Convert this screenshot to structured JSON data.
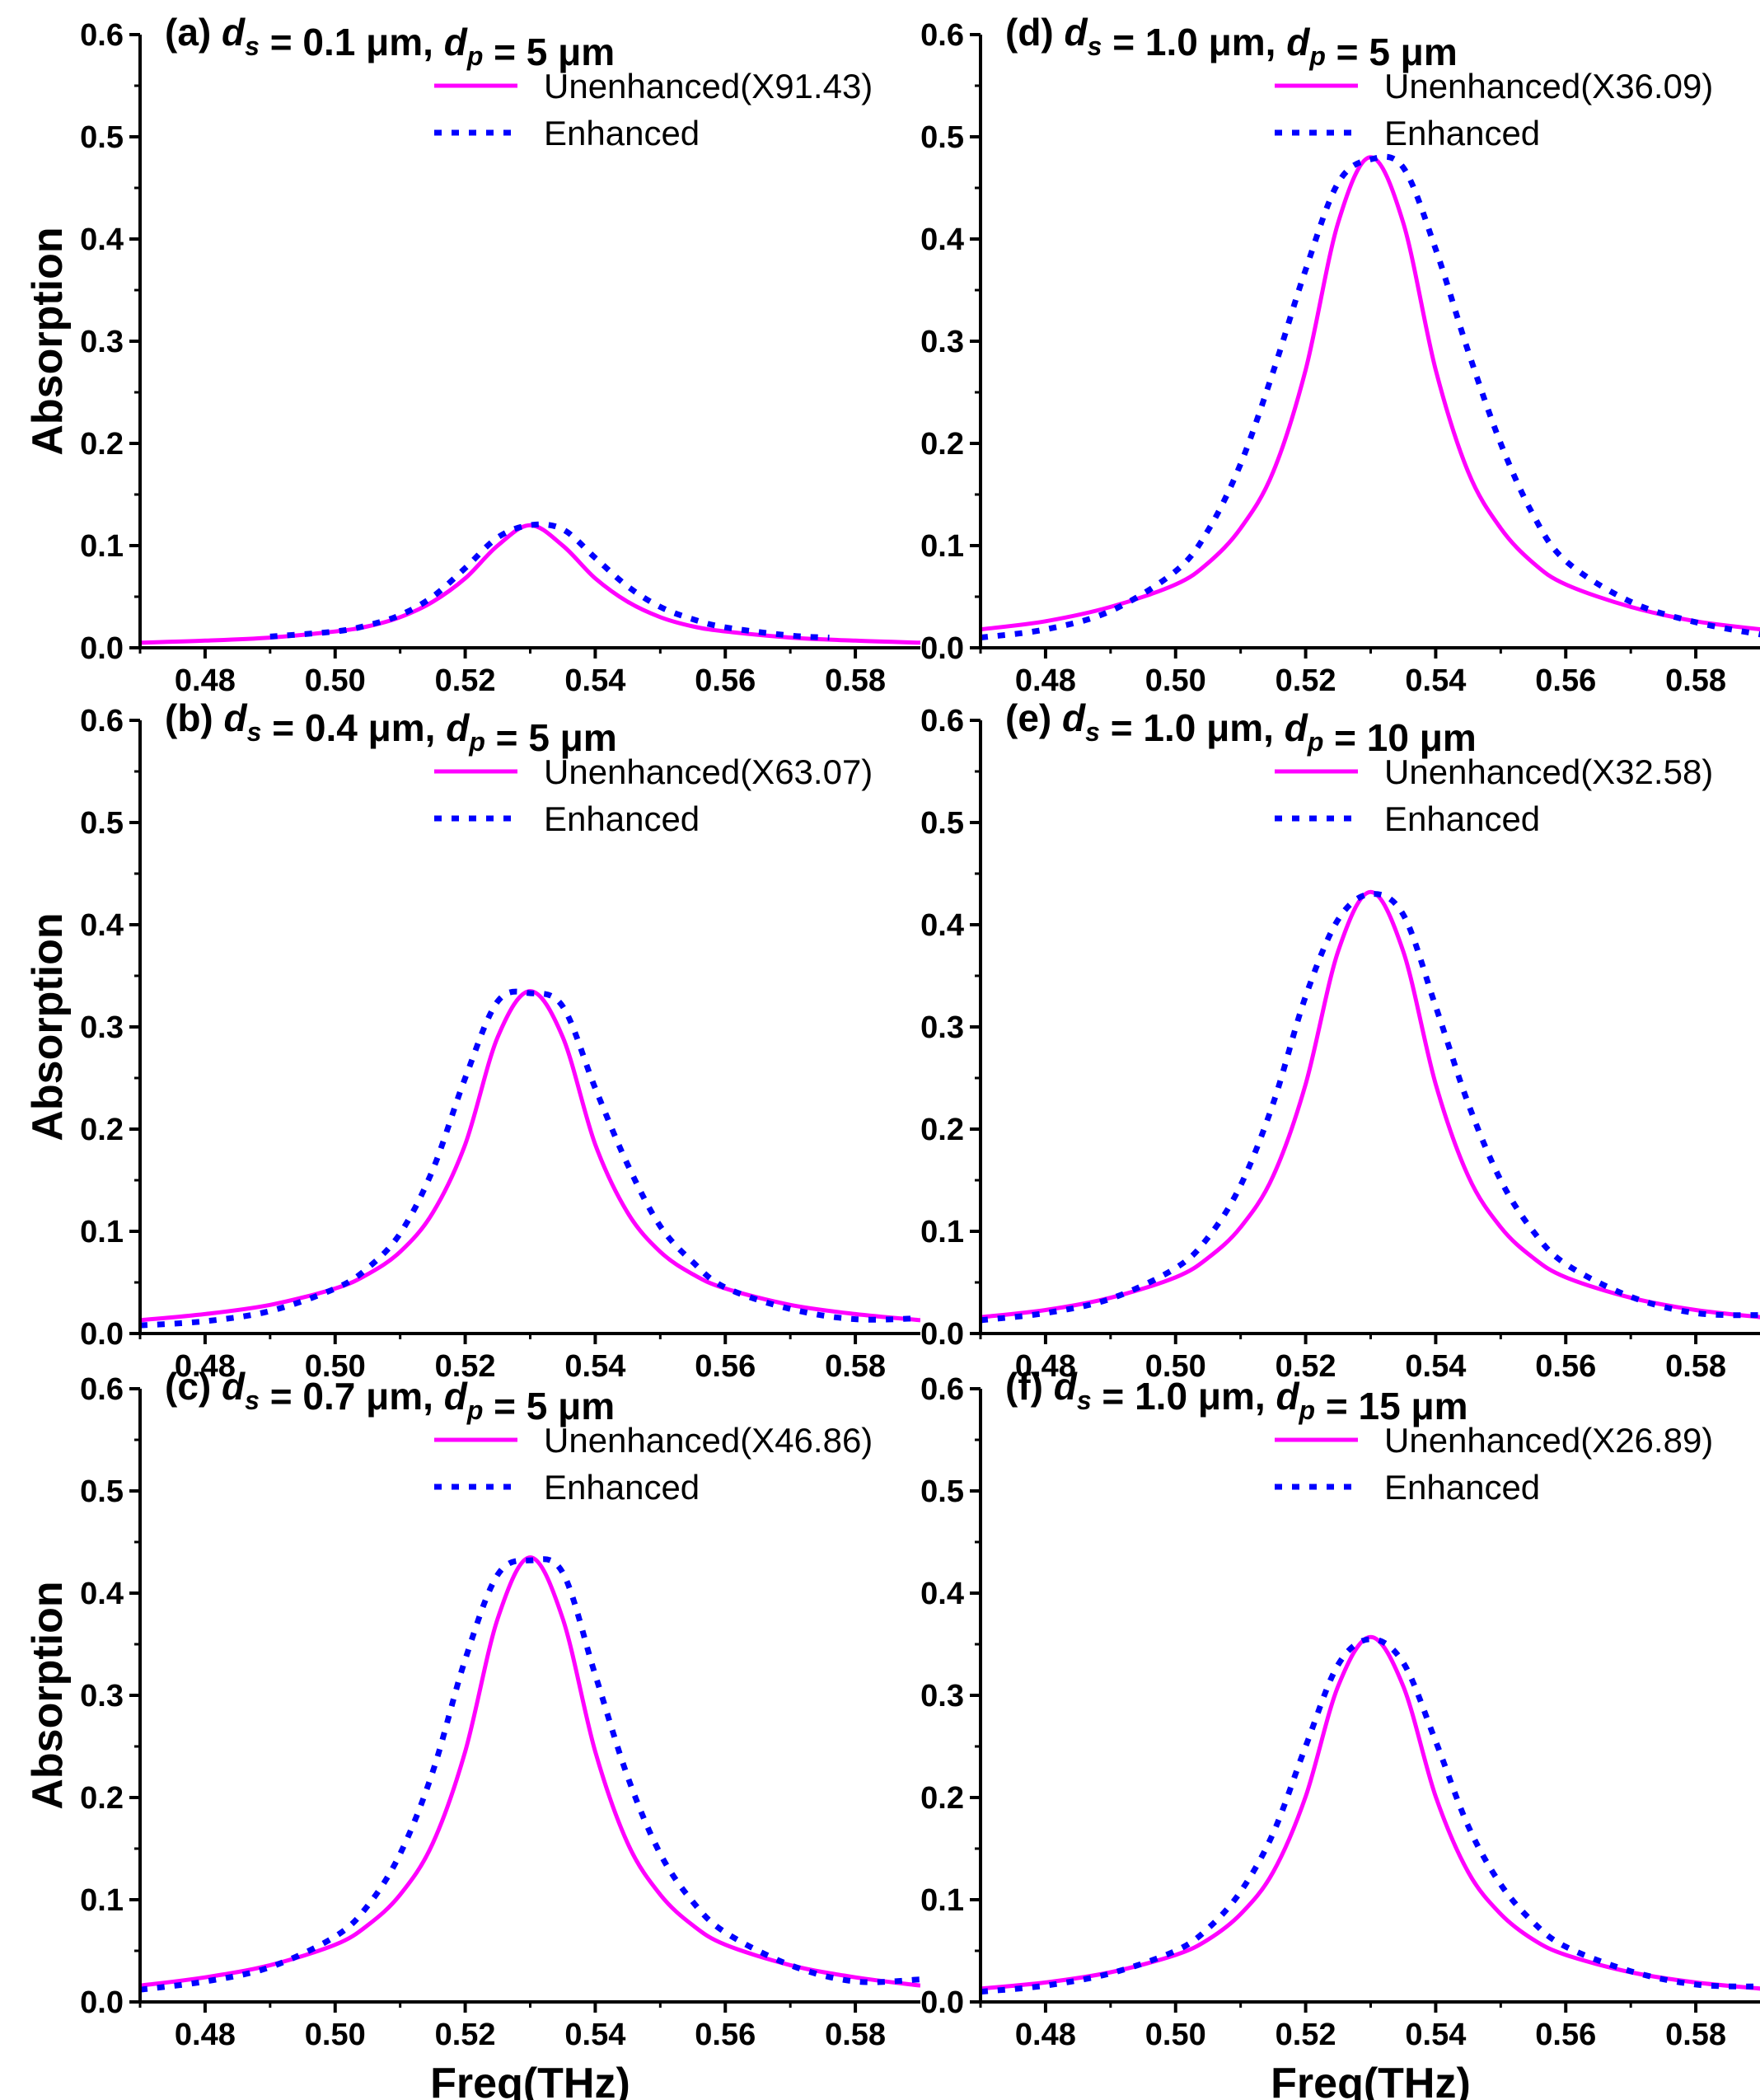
{
  "colors": {
    "unenhanced": "#ff00ff",
    "enhanced": "#0000ff",
    "axis": "#000000"
  },
  "chart_data": [
    {
      "type": "line",
      "panel_label": "(a)",
      "ds_value": "0.1 μm",
      "dp_value": "5 μm",
      "ds_symbol": "d",
      "ds_sub": "s",
      "dp_symbol": "d",
      "dp_sub": "p",
      "xlabel": "",
      "ylabel": "Absorption",
      "xlim": [
        0.47,
        0.59
      ],
      "ylim": [
        0,
        0.6
      ],
      "xticks": [
        "0.48",
        "0.50",
        "0.52",
        "0.54",
        "0.56",
        "0.58"
      ],
      "yticks": [
        "0.0",
        "0.1",
        "0.2",
        "0.3",
        "0.4",
        "0.5",
        "0.6"
      ],
      "legend_position": "top-right",
      "series": [
        {
          "name": "Unenhanced(X91.43)",
          "style": "solid",
          "x": [
            0.47,
            0.48,
            0.49,
            0.5,
            0.505,
            0.51,
            0.515,
            0.52,
            0.525,
            0.53,
            0.535,
            0.54,
            0.545,
            0.55,
            0.555,
            0.56,
            0.57,
            0.58,
            0.59
          ],
          "y": [
            0.005,
            0.007,
            0.01,
            0.016,
            0.021,
            0.03,
            0.045,
            0.068,
            0.1,
            0.12,
            0.1,
            0.068,
            0.045,
            0.03,
            0.021,
            0.016,
            0.01,
            0.007,
            0.005
          ]
        },
        {
          "name": "Enhanced",
          "style": "dotted",
          "x": [
            0.49,
            0.5,
            0.505,
            0.51,
            0.515,
            0.52,
            0.525,
            0.53,
            0.535,
            0.54,
            0.545,
            0.55,
            0.555,
            0.56,
            0.57,
            0.576
          ],
          "y": [
            0.011,
            0.016,
            0.022,
            0.032,
            0.05,
            0.078,
            0.108,
            0.12,
            0.116,
            0.088,
            0.06,
            0.04,
            0.028,
            0.02,
            0.012,
            0.01
          ]
        }
      ]
    },
    {
      "type": "line",
      "panel_label": "(b)",
      "ds_value": "0.4 μm",
      "dp_value": "5 μm",
      "ds_symbol": "d",
      "ds_sub": "s",
      "dp_symbol": "d",
      "dp_sub": "p",
      "xlabel": "",
      "ylabel": "Absorption",
      "xlim": [
        0.47,
        0.59
      ],
      "ylim": [
        0,
        0.6
      ],
      "xticks": [
        "0.48",
        "0.50",
        "0.52",
        "0.54",
        "0.56",
        "0.58"
      ],
      "yticks": [
        "0.0",
        "0.1",
        "0.2",
        "0.3",
        "0.4",
        "0.5",
        "0.6"
      ],
      "legend_position": "top-right",
      "series": [
        {
          "name": "Unenhanced(X63.07)",
          "style": "solid",
          "x": [
            0.47,
            0.48,
            0.49,
            0.5,
            0.505,
            0.51,
            0.515,
            0.52,
            0.525,
            0.53,
            0.535,
            0.54,
            0.545,
            0.55,
            0.555,
            0.56,
            0.57,
            0.58,
            0.59
          ],
          "y": [
            0.013,
            0.019,
            0.028,
            0.044,
            0.058,
            0.08,
            0.118,
            0.185,
            0.29,
            0.335,
            0.29,
            0.185,
            0.118,
            0.08,
            0.058,
            0.044,
            0.028,
            0.019,
            0.013
          ]
        },
        {
          "name": "Enhanced",
          "style": "dotted",
          "x": [
            0.47,
            0.48,
            0.49,
            0.5,
            0.505,
            0.51,
            0.515,
            0.52,
            0.525,
            0.53,
            0.535,
            0.54,
            0.545,
            0.55,
            0.555,
            0.56,
            0.57,
            0.58,
            0.59
          ],
          "y": [
            0.008,
            0.012,
            0.022,
            0.044,
            0.064,
            0.098,
            0.16,
            0.25,
            0.325,
            0.333,
            0.32,
            0.24,
            0.165,
            0.105,
            0.07,
            0.045,
            0.024,
            0.014,
            0.015
          ]
        }
      ]
    },
    {
      "type": "line",
      "panel_label": "(c)",
      "ds_value": "0.7 μm",
      "dp_value": "5 μm",
      "ds_symbol": "d",
      "ds_sub": "s",
      "dp_symbol": "d",
      "dp_sub": "p",
      "xlabel": "Freq(THz)",
      "ylabel": "Absorption",
      "xlim": [
        0.47,
        0.59
      ],
      "ylim": [
        0,
        0.6
      ],
      "xticks": [
        "0.48",
        "0.50",
        "0.52",
        "0.54",
        "0.56",
        "0.58"
      ],
      "yticks": [
        "0.0",
        "0.1",
        "0.2",
        "0.3",
        "0.4",
        "0.5",
        "0.6"
      ],
      "legend_position": "top-right",
      "series": [
        {
          "name": "Unenhanced(X46.86)",
          "style": "solid",
          "x": [
            0.47,
            0.48,
            0.49,
            0.5,
            0.505,
            0.51,
            0.515,
            0.52,
            0.525,
            0.53,
            0.535,
            0.54,
            0.545,
            0.55,
            0.555,
            0.56,
            0.57,
            0.58,
            0.59
          ],
          "y": [
            0.016,
            0.024,
            0.036,
            0.056,
            0.075,
            0.105,
            0.155,
            0.245,
            0.375,
            0.435,
            0.375,
            0.245,
            0.155,
            0.105,
            0.075,
            0.056,
            0.036,
            0.024,
            0.016
          ]
        },
        {
          "name": "Enhanced",
          "style": "dotted",
          "x": [
            0.47,
            0.48,
            0.49,
            0.5,
            0.505,
            0.51,
            0.515,
            0.52,
            0.525,
            0.53,
            0.535,
            0.54,
            0.545,
            0.55,
            0.555,
            0.56,
            0.57,
            0.58,
            0.59
          ],
          "y": [
            0.012,
            0.02,
            0.034,
            0.064,
            0.094,
            0.145,
            0.225,
            0.335,
            0.418,
            0.432,
            0.42,
            0.32,
            0.22,
            0.145,
            0.098,
            0.068,
            0.036,
            0.02,
            0.022
          ]
        }
      ]
    },
    {
      "type": "line",
      "panel_label": "(d)",
      "ds_value": "1.0 μm",
      "dp_value": "5 μm",
      "ds_symbol": "d",
      "ds_sub": "s",
      "dp_symbol": "d",
      "dp_sub": "p",
      "xlabel": "",
      "ylabel": "",
      "xlim": [
        0.47,
        0.59
      ],
      "ylim": [
        0,
        0.6
      ],
      "xticks": [
        "0.48",
        "0.50",
        "0.52",
        "0.54",
        "0.56",
        "0.58"
      ],
      "yticks": [
        "0.0",
        "0.1",
        "0.2",
        "0.3",
        "0.4",
        "0.5",
        "0.6"
      ],
      "legend_position": "top-right",
      "series": [
        {
          "name": "Unenhanced(X36.09)",
          "style": "solid",
          "x": [
            0.47,
            0.48,
            0.49,
            0.5,
            0.505,
            0.51,
            0.515,
            0.52,
            0.525,
            0.53,
            0.535,
            0.54,
            0.545,
            0.55,
            0.555,
            0.56,
            0.57,
            0.58,
            0.59
          ],
          "y": [
            0.018,
            0.026,
            0.04,
            0.062,
            0.083,
            0.117,
            0.172,
            0.272,
            0.416,
            0.48,
            0.416,
            0.272,
            0.172,
            0.117,
            0.083,
            0.062,
            0.04,
            0.026,
            0.018
          ]
        },
        {
          "name": "Enhanced",
          "style": "dotted",
          "x": [
            0.47,
            0.48,
            0.49,
            0.5,
            0.505,
            0.51,
            0.515,
            0.52,
            0.525,
            0.53,
            0.535,
            0.54,
            0.545,
            0.55,
            0.555,
            0.56,
            0.57,
            0.58,
            0.59
          ],
          "y": [
            0.01,
            0.018,
            0.036,
            0.075,
            0.115,
            0.18,
            0.27,
            0.37,
            0.455,
            0.478,
            0.47,
            0.39,
            0.29,
            0.2,
            0.13,
            0.085,
            0.045,
            0.025,
            0.013
          ]
        }
      ]
    },
    {
      "type": "line",
      "panel_label": "(e)",
      "ds_value": "1.0 μm",
      "dp_value": "10 μm",
      "ds_symbol": "d",
      "ds_sub": "s",
      "dp_symbol": "d",
      "dp_sub": "p",
      "xlabel": "",
      "ylabel": "",
      "xlim": [
        0.47,
        0.59
      ],
      "ylim": [
        0,
        0.6
      ],
      "xticks": [
        "0.48",
        "0.50",
        "0.52",
        "0.54",
        "0.56",
        "0.58"
      ],
      "yticks": [
        "0.0",
        "0.1",
        "0.2",
        "0.3",
        "0.4",
        "0.5",
        "0.6"
      ],
      "legend_position": "top-right",
      "series": [
        {
          "name": "Unenhanced(X32.58)",
          "style": "solid",
          "x": [
            0.47,
            0.48,
            0.49,
            0.5,
            0.505,
            0.51,
            0.515,
            0.52,
            0.525,
            0.53,
            0.535,
            0.54,
            0.545,
            0.55,
            0.555,
            0.56,
            0.57,
            0.58,
            0.59
          ],
          "y": [
            0.016,
            0.023,
            0.035,
            0.055,
            0.074,
            0.104,
            0.154,
            0.244,
            0.374,
            0.432,
            0.374,
            0.244,
            0.154,
            0.104,
            0.074,
            0.055,
            0.035,
            0.023,
            0.016
          ]
        },
        {
          "name": "Enhanced",
          "style": "dotted",
          "x": [
            0.47,
            0.48,
            0.49,
            0.5,
            0.505,
            0.51,
            0.515,
            0.52,
            0.525,
            0.53,
            0.535,
            0.54,
            0.545,
            0.55,
            0.555,
            0.56,
            0.57,
            0.58,
            0.59
          ],
          "y": [
            0.013,
            0.02,
            0.034,
            0.064,
            0.094,
            0.145,
            0.225,
            0.33,
            0.405,
            0.43,
            0.41,
            0.32,
            0.225,
            0.15,
            0.1,
            0.068,
            0.036,
            0.02,
            0.018
          ]
        }
      ]
    },
    {
      "type": "line",
      "panel_label": "(f)",
      "ds_value": "1.0 μm",
      "dp_value": "15 μm",
      "ds_symbol": "d",
      "ds_sub": "s",
      "dp_symbol": "d",
      "dp_sub": "p",
      "xlabel": "Freq(THz)",
      "ylabel": "",
      "xlim": [
        0.47,
        0.59
      ],
      "ylim": [
        0,
        0.6
      ],
      "xticks": [
        "0.48",
        "0.50",
        "0.52",
        "0.54",
        "0.56",
        "0.58"
      ],
      "yticks": [
        "0.0",
        "0.1",
        "0.2",
        "0.3",
        "0.4",
        "0.5",
        "0.6"
      ],
      "legend_position": "top-right",
      "series": [
        {
          "name": "Unenhanced(X26.89)",
          "style": "solid",
          "x": [
            0.47,
            0.48,
            0.49,
            0.5,
            0.505,
            0.51,
            0.515,
            0.52,
            0.525,
            0.53,
            0.535,
            0.54,
            0.545,
            0.55,
            0.555,
            0.56,
            0.57,
            0.58,
            0.59
          ],
          "y": [
            0.013,
            0.019,
            0.029,
            0.046,
            0.061,
            0.086,
            0.127,
            0.201,
            0.309,
            0.357,
            0.309,
            0.201,
            0.127,
            0.086,
            0.061,
            0.046,
            0.029,
            0.019,
            0.013
          ]
        },
        {
          "name": "Enhanced",
          "style": "dotted",
          "x": [
            0.47,
            0.48,
            0.49,
            0.5,
            0.505,
            0.51,
            0.515,
            0.52,
            0.525,
            0.53,
            0.535,
            0.54,
            0.545,
            0.55,
            0.555,
            0.56,
            0.57,
            0.58,
            0.59
          ],
          "y": [
            0.01,
            0.016,
            0.028,
            0.05,
            0.072,
            0.108,
            0.165,
            0.25,
            0.33,
            0.355,
            0.332,
            0.255,
            0.172,
            0.115,
            0.078,
            0.054,
            0.03,
            0.017,
            0.015
          ]
        }
      ]
    }
  ]
}
